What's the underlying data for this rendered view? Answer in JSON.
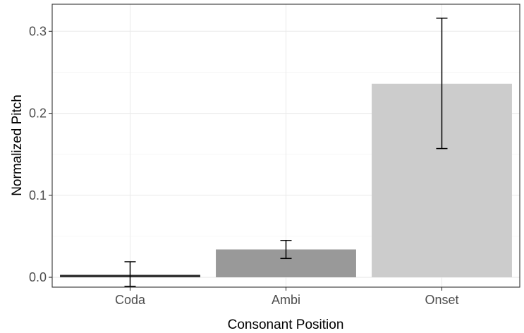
{
  "chart_data": {
    "type": "bar",
    "xlabel": "Consonant Position",
    "ylabel": "Normalized Pitch",
    "categories": [
      "Coda",
      "Ambi",
      "Onset"
    ],
    "values": [
      0.003,
      0.034,
      0.236
    ],
    "error_low": [
      -0.011,
      0.023,
      0.157
    ],
    "error_high": [
      0.019,
      0.045,
      0.316
    ],
    "bar_colors": [
      "#333333",
      "#999999",
      "#cccccc"
    ],
    "ylim": [
      -0.012,
      0.333
    ],
    "yticks": [
      0.0,
      0.1,
      0.2,
      0.3
    ],
    "ytick_labels": [
      "0.0",
      "0.1",
      "0.2",
      "0.3"
    ],
    "grid": true,
    "legend": "none"
  }
}
